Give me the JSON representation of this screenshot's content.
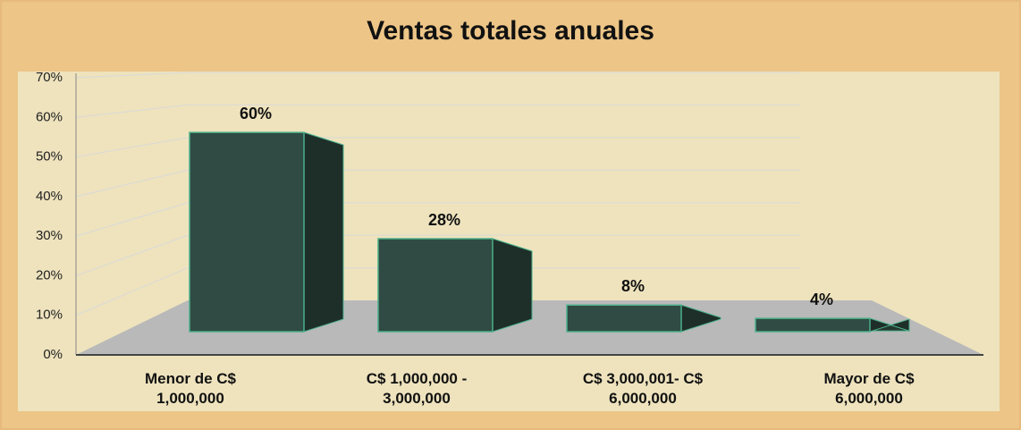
{
  "chart_data": {
    "type": "bar3d",
    "title": "Ventas totales anuales",
    "categories": [
      "Menor de C$ 1,000,000",
      "C$ 1,000,000 - 3,000,000",
      "C$ 3,000,001- C$ 6,000,000",
      "Mayor de C$ 6,000,000"
    ],
    "values": [
      60,
      28,
      8,
      4
    ],
    "value_labels": [
      "60%",
      "28%",
      "8%",
      "4%"
    ],
    "color": "#2f4b43",
    "ylim": [
      0,
      70
    ],
    "yticks": [
      {
        "value": 0,
        "label": "0%"
      },
      {
        "value": 10,
        "label": "10%"
      },
      {
        "value": 20,
        "label": "20%"
      },
      {
        "value": 30,
        "label": "30%"
      },
      {
        "value": 40,
        "label": "40%"
      },
      {
        "value": 50,
        "label": "50%"
      },
      {
        "value": 60,
        "label": "60%"
      },
      {
        "value": 70,
        "label": "70%"
      }
    ],
    "grid": true
  }
}
